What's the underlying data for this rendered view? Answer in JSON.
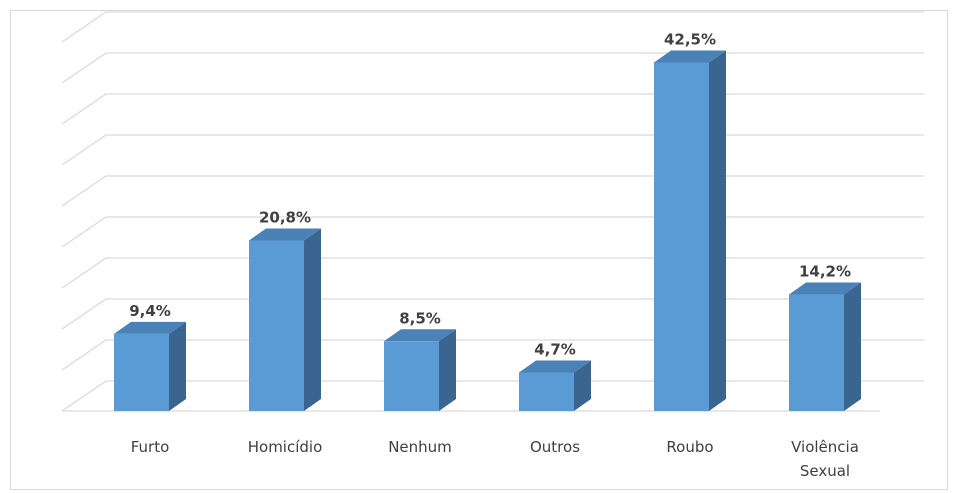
{
  "chart_data": {
    "type": "bar",
    "style": "3d-column",
    "categories": [
      "Furto",
      "Homicídio",
      "Nenhum",
      "Outros",
      "Roubo",
      [
        "Violência",
        "Sexual"
      ]
    ],
    "values": [
      9.4,
      20.8,
      8.5,
      4.7,
      42.5,
      14.2
    ],
    "data_labels": [
      "9,4%",
      "20,8%",
      "8,5%",
      "4,7%",
      "42,5%",
      "14,2%"
    ],
    "unit": "%",
    "ylim": [
      0,
      45
    ],
    "grid": true,
    "colors": {
      "front": "#5b9bd5",
      "side": "#3a6591",
      "top": "#4a82b7",
      "grid": "#d9d9d9",
      "text": "#404040"
    }
  }
}
